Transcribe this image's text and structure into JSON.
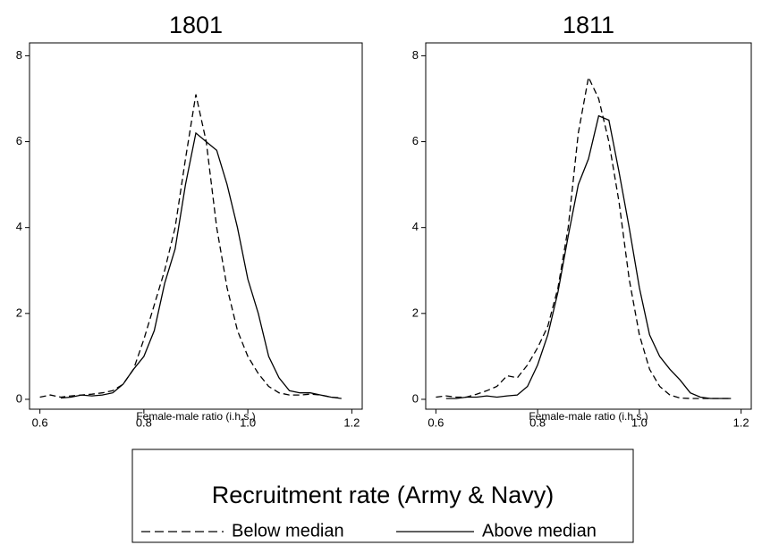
{
  "chart_data": [
    {
      "type": "line",
      "title": "1801",
      "xlabel": "Female-male ratio (i.h.s.)",
      "x": [
        0.6,
        0.62,
        0.64,
        0.66,
        0.68,
        0.7,
        0.72,
        0.74,
        0.76,
        0.78,
        0.8,
        0.82,
        0.84,
        0.86,
        0.88,
        0.9,
        0.92,
        0.94,
        0.96,
        0.98,
        1.0,
        1.02,
        1.04,
        1.06,
        1.08,
        1.1,
        1.12,
        1.14,
        1.16,
        1.18
      ],
      "series": [
        {
          "name": "Below median",
          "color": "#000000",
          "line_style": "dashed",
          "values": [
            0.05,
            0.1,
            0.05,
            0.08,
            0.1,
            0.12,
            0.15,
            0.2,
            0.35,
            0.7,
            1.4,
            2.2,
            3.0,
            4.0,
            5.6,
            7.1,
            6.0,
            4.0,
            2.6,
            1.6,
            1.0,
            0.6,
            0.3,
            0.15,
            0.1,
            0.1,
            0.12,
            0.1,
            0.05,
            0.03
          ]
        },
        {
          "name": "Above median",
          "color": "#000000",
          "line_style": "solid",
          "values": [
            null,
            null,
            0.03,
            0.05,
            0.1,
            0.08,
            0.1,
            0.15,
            0.35,
            0.7,
            1.0,
            1.6,
            2.7,
            3.5,
            5.0,
            6.2,
            6.0,
            5.8,
            5.0,
            4.0,
            2.8,
            2.0,
            1.0,
            0.5,
            0.2,
            0.15,
            0.15,
            0.1,
            0.05,
            0.02
          ]
        }
      ],
      "xlim": [
        0.58,
        1.22
      ],
      "ylim": [
        -0.23,
        8.3
      ],
      "xticks": [
        0.6,
        0.8,
        {
          "value": 1,
          "label": "1.0"
        },
        1.2
      ],
      "yticks": [
        0,
        2,
        4,
        6,
        8
      ]
    },
    {
      "type": "line",
      "title": "1811",
      "xlabel": "Female-male ratio (i.h.s.)",
      "x": [
        0.6,
        0.62,
        0.64,
        0.66,
        0.68,
        0.7,
        0.72,
        0.74,
        0.76,
        0.78,
        0.8,
        0.82,
        0.84,
        0.86,
        0.88,
        0.9,
        0.92,
        0.94,
        0.96,
        0.98,
        1.0,
        1.02,
        1.04,
        1.06,
        1.08,
        1.1,
        1.12,
        1.14,
        1.16,
        1.18
      ],
      "series": [
        {
          "name": "Below median",
          "color": "#000000",
          "line_style": "dashed",
          "values": [
            0.05,
            0.08,
            0.05,
            0.05,
            0.12,
            0.2,
            0.3,
            0.55,
            0.5,
            0.8,
            1.2,
            1.7,
            2.6,
            4.0,
            6.2,
            7.5,
            7.0,
            6.0,
            4.6,
            2.8,
            1.5,
            0.7,
            0.3,
            0.1,
            0.03,
            0.02,
            0.02,
            0.02,
            0.02,
            0.02
          ]
        },
        {
          "name": "Above median",
          "color": "#000000",
          "line_style": "solid",
          "values": [
            null,
            0.02,
            0.02,
            0.05,
            0.05,
            0.08,
            0.05,
            0.08,
            0.1,
            0.3,
            0.8,
            1.5,
            2.5,
            3.8,
            5.0,
            5.6,
            6.6,
            6.5,
            5.3,
            4.0,
            2.6,
            1.5,
            1.0,
            0.7,
            0.45,
            0.15,
            0.05,
            0.02,
            0.02,
            0.02
          ]
        }
      ],
      "xlim": [
        0.58,
        1.22
      ],
      "ylim": [
        -0.23,
        8.3
      ],
      "xticks": [
        0.6,
        0.8,
        {
          "value": 1,
          "label": "1.0"
        },
        1.2
      ],
      "yticks": [
        0,
        2,
        4,
        6,
        8
      ]
    }
  ],
  "legend_title": "Recruitment rate (Army & Navy)"
}
